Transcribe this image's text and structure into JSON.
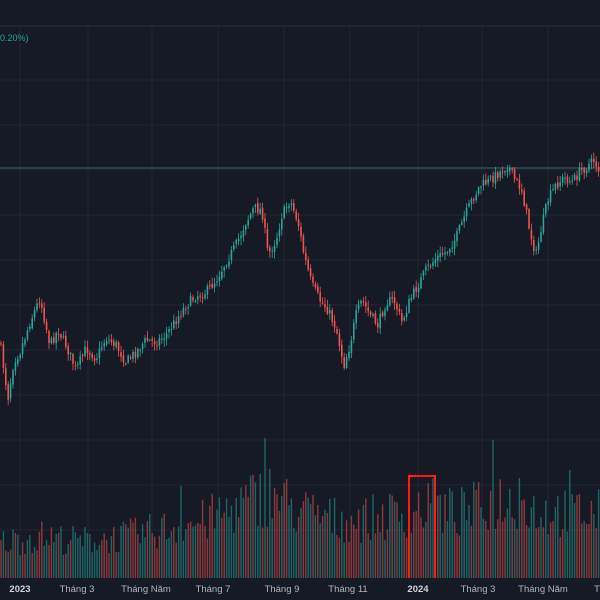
{
  "header": {
    "change_text": "0.20%)"
  },
  "colors": {
    "background": "#161a25",
    "grid": "#232632",
    "up": "#26a69a",
    "down": "#ef5350",
    "price_line": "#2f6f68",
    "highlight_box": "#ff1a1a",
    "axis_text": "#b2b5be"
  },
  "x_axis": {
    "labels": [
      {
        "text": "2023",
        "bold": true
      },
      {
        "text": "Tháng 3",
        "bold": false
      },
      {
        "text": "Tháng Năm",
        "bold": false
      },
      {
        "text": "Tháng 7",
        "bold": false
      },
      {
        "text": "Tháng 9",
        "bold": false
      },
      {
        "text": "Tháng 11",
        "bold": false
      },
      {
        "text": "2024",
        "bold": true
      },
      {
        "text": "Tháng 3",
        "bold": false
      },
      {
        "text": "Tháng Năm",
        "bold": false
      },
      {
        "text": "T",
        "bold": false
      }
    ]
  },
  "chart_data": {
    "type": "candlestick",
    "title": "",
    "grid": true,
    "price_anchors": [
      [
        0,
        342
      ],
      [
        8,
        398
      ],
      [
        14,
        360
      ],
      [
        20,
        352
      ],
      [
        30,
        322
      ],
      [
        40,
        298
      ],
      [
        50,
        345
      ],
      [
        58,
        330
      ],
      [
        66,
        345
      ],
      [
        76,
        370
      ],
      [
        86,
        348
      ],
      [
        96,
        358
      ],
      [
        106,
        338
      ],
      [
        116,
        345
      ],
      [
        126,
        362
      ],
      [
        136,
        352
      ],
      [
        146,
        340
      ],
      [
        156,
        342
      ],
      [
        166,
        335
      ],
      [
        176,
        320
      ],
      [
        186,
        305
      ],
      [
        196,
        296
      ],
      [
        206,
        292
      ],
      [
        216,
        280
      ],
      [
        226,
        262
      ],
      [
        236,
        245
      ],
      [
        246,
        222
      ],
      [
        254,
        208
      ],
      [
        262,
        210
      ],
      [
        268,
        255
      ],
      [
        276,
        240
      ],
      [
        282,
        215
      ],
      [
        290,
        200
      ],
      [
        298,
        222
      ],
      [
        304,
        255
      ],
      [
        312,
        285
      ],
      [
        320,
        300
      ],
      [
        328,
        310
      ],
      [
        336,
        328
      ],
      [
        344,
        365
      ],
      [
        350,
        345
      ],
      [
        356,
        315
      ],
      [
        362,
        300
      ],
      [
        370,
        315
      ],
      [
        378,
        325
      ],
      [
        386,
        302
      ],
      [
        394,
        300
      ],
      [
        402,
        322
      ],
      [
        410,
        300
      ],
      [
        418,
        285
      ],
      [
        426,
        270
      ],
      [
        436,
        258
      ],
      [
        446,
        252
      ],
      [
        456,
        238
      ],
      [
        464,
        218
      ],
      [
        472,
        200
      ],
      [
        480,
        186
      ],
      [
        490,
        180
      ],
      [
        500,
        172
      ],
      [
        508,
        165
      ],
      [
        514,
        178
      ],
      [
        522,
        190
      ],
      [
        530,
        232
      ],
      [
        536,
        255
      ],
      [
        542,
        225
      ],
      [
        548,
        200
      ],
      [
        556,
        185
      ],
      [
        564,
        178
      ],
      [
        572,
        182
      ],
      [
        580,
        172
      ],
      [
        588,
        165
      ],
      [
        594,
        160
      ],
      [
        600,
        172
      ]
    ],
    "volume_anchors": [
      [
        0,
        38
      ],
      [
        40,
        45
      ],
      [
        80,
        40
      ],
      [
        120,
        44
      ],
      [
        160,
        52
      ],
      [
        200,
        60
      ],
      [
        240,
        78
      ],
      [
        268,
        92
      ],
      [
        300,
        72
      ],
      [
        340,
        62
      ],
      [
        380,
        65
      ],
      [
        420,
        75
      ],
      [
        460,
        70
      ],
      [
        500,
        85
      ],
      [
        540,
        72
      ],
      [
        600,
        70
      ]
    ],
    "volume_spikes": [
      {
        "x": 266,
        "height": 140
      },
      {
        "x": 494,
        "height": 138
      },
      {
        "x": 432,
        "height": 100
      },
      {
        "x": 478,
        "height": 96
      },
      {
        "x": 182,
        "height": 92
      },
      {
        "x": 570,
        "height": 108
      },
      {
        "x": 520,
        "height": 100
      }
    ],
    "highlight_box": {
      "label": "volume-highlight"
    }
  }
}
